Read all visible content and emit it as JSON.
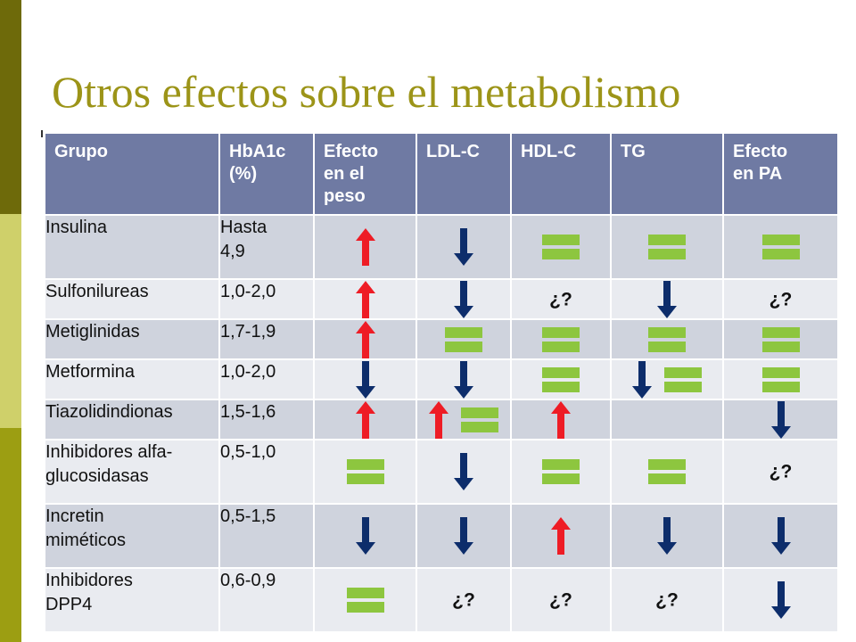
{
  "title": "Otros efectos sobre el metabolismo",
  "table": {
    "headers": [
      "Grupo",
      "HbA1c\n(%)",
      "Efecto\nen el\npeso",
      "LDL-C",
      "HDL-C",
      "TG",
      "Efecto\nen PA"
    ],
    "rows": [
      {
        "grupo": "Insulina",
        "hba1c": "Hasta\n4,9",
        "effects": [
          [
            "up"
          ],
          [
            "down"
          ],
          [
            "equal"
          ],
          [
            "equal"
          ],
          [
            "equal"
          ]
        ]
      },
      {
        "grupo": "Sulfonilureas",
        "hba1c": "1,0-2,0",
        "effects": [
          [
            "up"
          ],
          [
            "down"
          ],
          [
            "unknown"
          ],
          [
            "down"
          ],
          [
            "unknown"
          ]
        ]
      },
      {
        "grupo": "Metiglinidas",
        "hba1c": "1,7-1,9",
        "effects": [
          [
            "up"
          ],
          [
            "equal"
          ],
          [
            "equal"
          ],
          [
            "equal"
          ],
          [
            "equal"
          ]
        ]
      },
      {
        "grupo": "Metformina",
        "hba1c": "1,0-2,0",
        "effects": [
          [
            "down"
          ],
          [
            "down"
          ],
          [
            "equal"
          ],
          [
            "down",
            "equal"
          ],
          [
            "equal"
          ]
        ]
      },
      {
        "grupo": "Tiazolidindionas",
        "hba1c": "1,5-1,6",
        "effects": [
          [
            "up"
          ],
          [
            "up",
            "equal"
          ],
          [
            "up"
          ],
          [],
          [
            "down"
          ]
        ]
      },
      {
        "grupo": "Inhibidores alfa-\nglucosidasas",
        "hba1c": "0,5-1,0",
        "effects": [
          [
            "equal"
          ],
          [
            "down"
          ],
          [
            "equal"
          ],
          [
            "equal"
          ],
          [
            "unknown"
          ]
        ]
      },
      {
        "grupo": "Incretin\nmiméticos",
        "hba1c": "0,5-1,5",
        "effects": [
          [
            "down"
          ],
          [
            "down"
          ],
          [
            "up"
          ],
          [
            "down"
          ],
          [
            "down"
          ]
        ]
      },
      {
        "grupo": "Inhibidores\nDPP4",
        "hba1c": "0,6-0,9",
        "effects": [
          [
            "equal"
          ],
          [
            "unknown"
          ],
          [
            "unknown"
          ],
          [
            "unknown"
          ],
          [
            "down"
          ]
        ]
      }
    ],
    "symbol_text": {
      "unknown": "¿?"
    },
    "symbol_names": {
      "up": "red-up-arrow-icon",
      "down": "blue-down-arrow-icon",
      "equal": "green-equal-icon",
      "unknown": "unknown-marker"
    },
    "colors": {
      "up": "#ee1c25",
      "down": "#0d2d6b",
      "equal": "#8dc63f",
      "header_bg": "#6f7aa3",
      "row_odd": "#cfd3dd",
      "row_even": "#e9ebf0",
      "title": "#9c9418"
    }
  }
}
